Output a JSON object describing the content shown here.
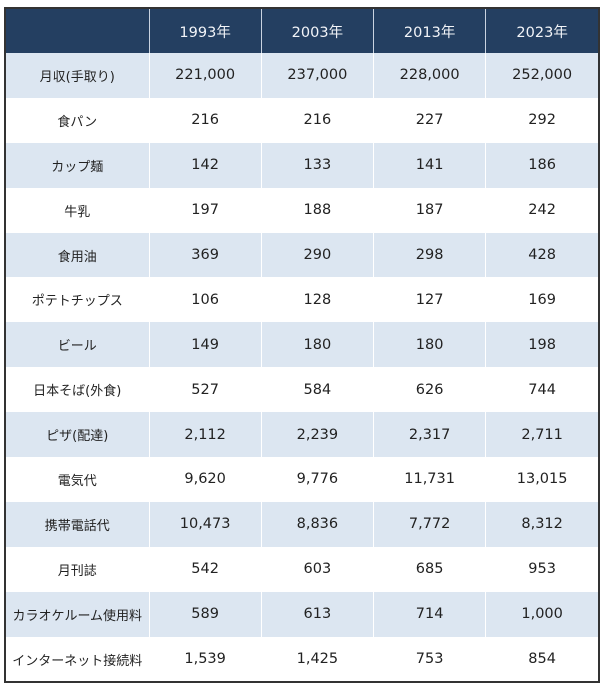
{
  "table": {
    "headers": [
      "",
      "1993年",
      "2003年",
      "2013年",
      "2023年"
    ],
    "rows": [
      {
        "label": "月収(手取り)",
        "values": [
          "221,000",
          "237,000",
          "228,000",
          "252,000"
        ]
      },
      {
        "label": "食パン",
        "values": [
          "216",
          "216",
          "227",
          "292"
        ]
      },
      {
        "label": "カップ麺",
        "values": [
          "142",
          "133",
          "141",
          "186"
        ]
      },
      {
        "label": "牛乳",
        "values": [
          "197",
          "188",
          "187",
          "242"
        ]
      },
      {
        "label": "食用油",
        "values": [
          "369",
          "290",
          "298",
          "428"
        ]
      },
      {
        "label": "ポテトチップス",
        "values": [
          "106",
          "128",
          "127",
          "169"
        ]
      },
      {
        "label": "ビール",
        "values": [
          "149",
          "180",
          "180",
          "198"
        ]
      },
      {
        "label": "日本そば(外食)",
        "values": [
          "527",
          "584",
          "626",
          "744"
        ]
      },
      {
        "label": "ピザ(配達)",
        "values": [
          "2,112",
          "2,239",
          "2,317",
          "2,711"
        ]
      },
      {
        "label": "電気代",
        "values": [
          "9,620",
          "9,776",
          "11,731",
          "13,015"
        ]
      },
      {
        "label": "携帯電話代",
        "values": [
          "10,473",
          "8,836",
          "7,772",
          "8,312"
        ]
      },
      {
        "label": "月刊誌",
        "values": [
          "542",
          "603",
          "685",
          "953"
        ]
      },
      {
        "label": "カラオケルーム使用料",
        "values": [
          "589",
          "613",
          "714",
          "1,000"
        ]
      },
      {
        "label": "インターネット接続料",
        "values": [
          "1,539",
          "1,425",
          "753",
          "854"
        ]
      }
    ]
  },
  "colors": {
    "header_bg": "#243f61",
    "stripe_bg": "#dce6f1"
  }
}
